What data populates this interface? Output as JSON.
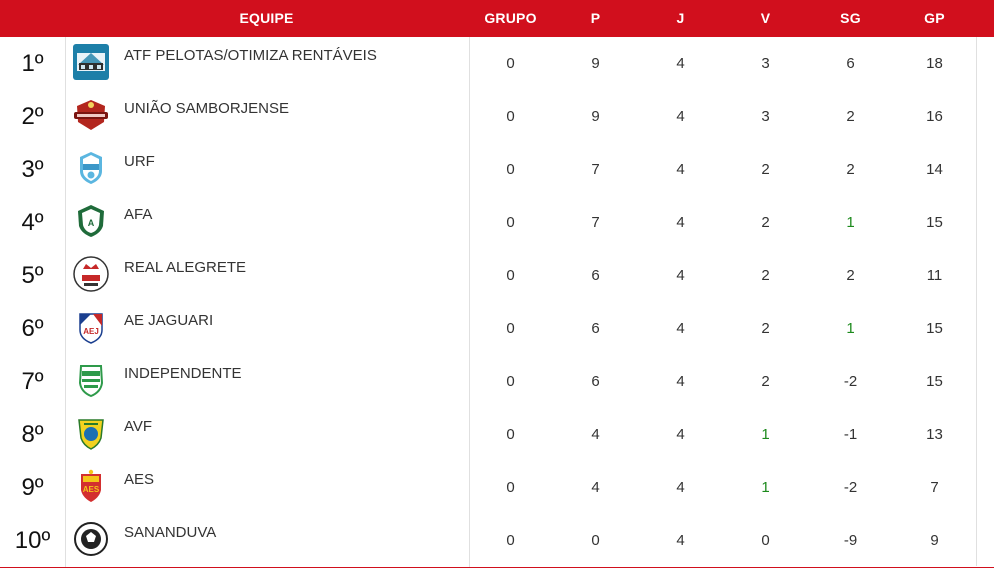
{
  "header": {
    "equipe": "EQUIPE",
    "grupo": "GRUPO",
    "p": "P",
    "j": "J",
    "v": "V",
    "sg": "SG",
    "gp": "GP"
  },
  "colors": {
    "accent": "#d10f1d",
    "positive_sg": "#1c8a1c"
  },
  "rows": [
    {
      "pos": "1º",
      "team": "ATF PELOTAS/OTIMIZA RENTÁVEIS",
      "logo": "atf-pelotas-logo",
      "grupo": "0",
      "p": "9",
      "j": "4",
      "v": "3",
      "sg": "6",
      "gp": "18"
    },
    {
      "pos": "2º",
      "team": "UNIÃO SAMBORJENSE",
      "logo": "uniao-samborjense-logo",
      "grupo": "0",
      "p": "9",
      "j": "4",
      "v": "3",
      "sg": "2",
      "gp": "16"
    },
    {
      "pos": "3º",
      "team": "URF",
      "logo": "urf-logo",
      "grupo": "0",
      "p": "7",
      "j": "4",
      "v": "2",
      "sg": "2",
      "gp": "14"
    },
    {
      "pos": "4º",
      "team": "AFA",
      "logo": "afa-logo",
      "grupo": "0",
      "p": "7",
      "j": "4",
      "v": "2",
      "sg": "1",
      "gp": "15"
    },
    {
      "pos": "5º",
      "team": "REAL ALEGRETE",
      "logo": "real-alegrete-logo",
      "grupo": "0",
      "p": "6",
      "j": "4",
      "v": "2",
      "sg": "2",
      "gp": "11"
    },
    {
      "pos": "6º",
      "team": "AE JAGUARI",
      "logo": "ae-jaguari-logo",
      "grupo": "0",
      "p": "6",
      "j": "4",
      "v": "2",
      "sg": "1",
      "gp": "15"
    },
    {
      "pos": "7º",
      "team": "INDEPENDENTE",
      "logo": "independente-logo",
      "grupo": "0",
      "p": "6",
      "j": "4",
      "v": "2",
      "sg": "-2",
      "gp": "15"
    },
    {
      "pos": "8º",
      "team": "AVF",
      "logo": "avf-logo",
      "grupo": "0",
      "p": "4",
      "j": "4",
      "v": "1",
      "sg": "-1",
      "gp": "13"
    },
    {
      "pos": "9º",
      "team": "AES",
      "logo": "aes-logo",
      "grupo": "0",
      "p": "4",
      "j": "4",
      "v": "1",
      "sg": "-2",
      "gp": "7"
    },
    {
      "pos": "10º",
      "team": "SANANDUVA",
      "logo": "sananduva-logo",
      "grupo": "0",
      "p": "0",
      "j": "4",
      "v": "0",
      "sg": "-9",
      "gp": "9"
    }
  ]
}
